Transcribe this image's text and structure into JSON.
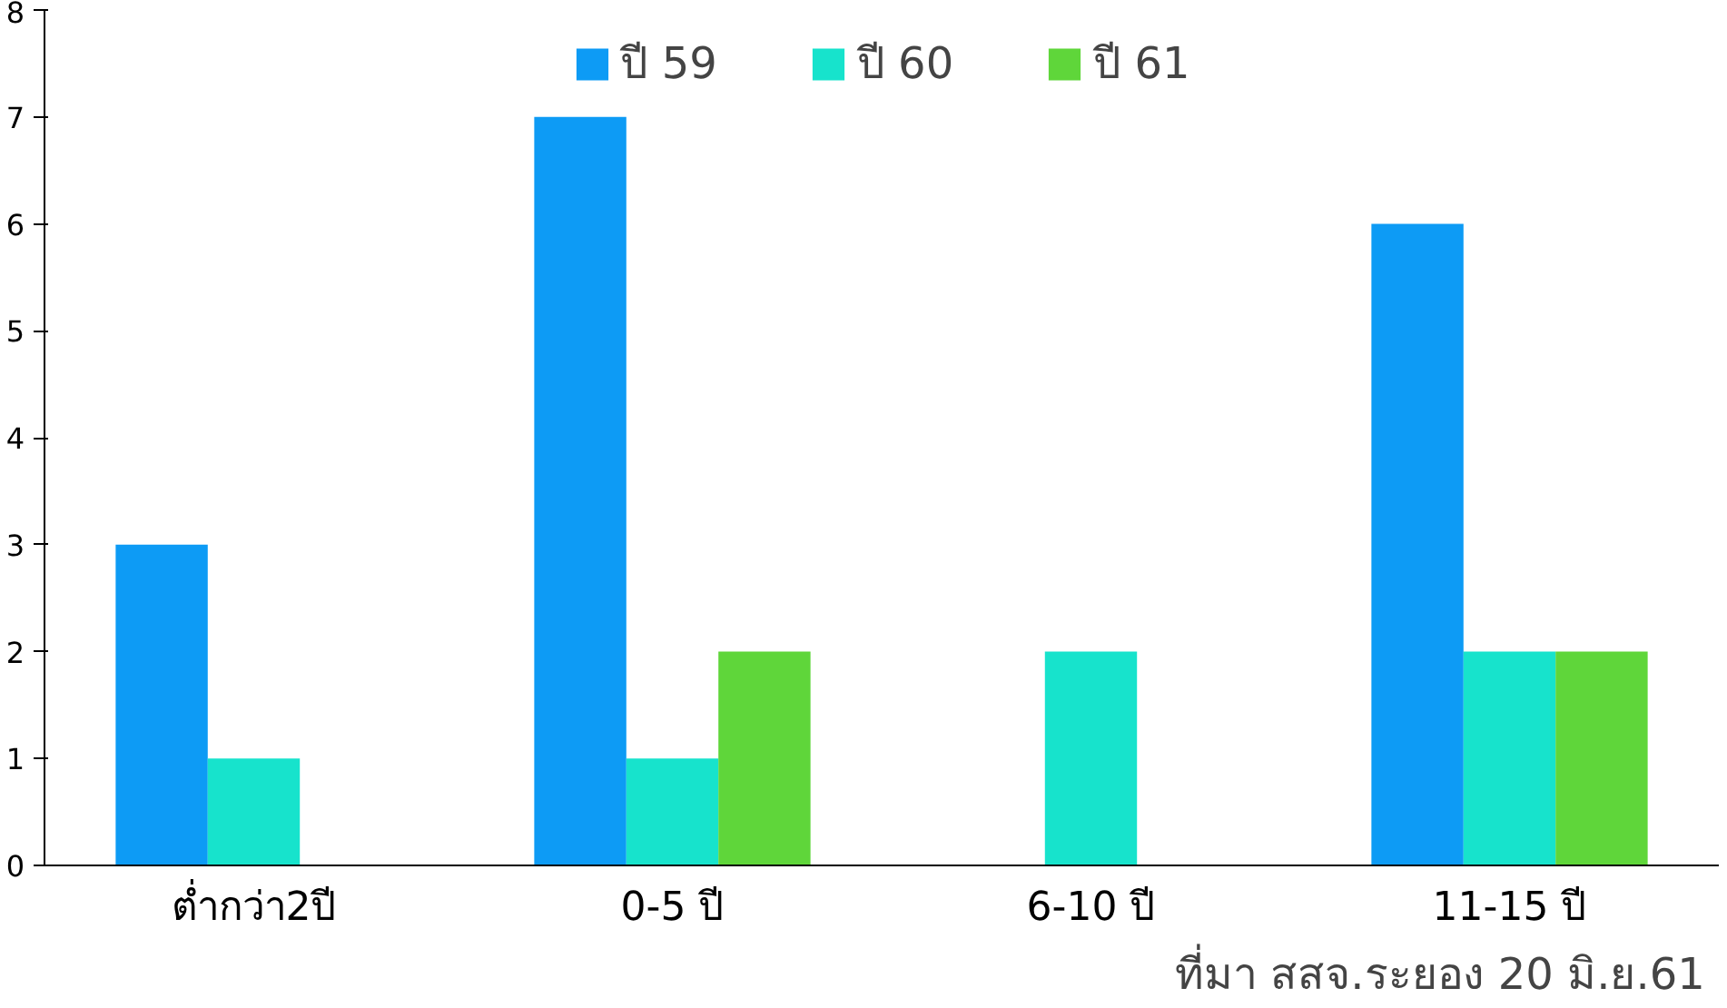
{
  "chart_data": {
    "type": "bar",
    "categories": [
      "ต่ำกว่า2ปี",
      "0-5 ปี",
      "6-10 ปี",
      "11-15 ปี"
    ],
    "series": [
      {
        "name": "ปี 59",
        "color": "#0d9bf5",
        "values": [
          3,
          7,
          0,
          6
        ]
      },
      {
        "name": "ปี 60",
        "color": "#17e3cc",
        "values": [
          1,
          1,
          2,
          2
        ]
      },
      {
        "name": "ปี 61",
        "color": "#5fd63a",
        "values": [
          0,
          2,
          0,
          2
        ]
      }
    ],
    "ylim": [
      0,
      8
    ],
    "yticks": [
      0,
      1,
      2,
      3,
      4,
      5,
      6,
      7,
      8
    ],
    "grid": false,
    "legend": "top",
    "annotations": [
      "ที่มา สสจ.ระยอง  20 มิ.ย.61"
    ]
  }
}
